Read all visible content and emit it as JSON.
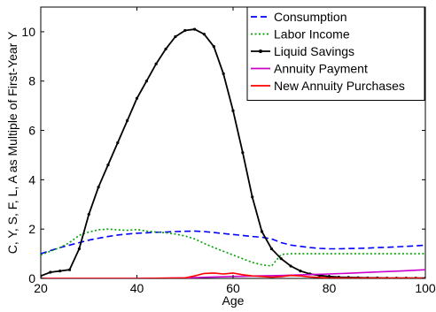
{
  "chart_data": {
    "type": "line",
    "xlabel": "Age",
    "ylabel": "C, Y, S, F, L, A as Multiple of First-Year Y",
    "xlim": [
      20,
      100
    ],
    "ylim": [
      0,
      11
    ],
    "x_ticks": [
      20,
      40,
      60,
      80,
      100
    ],
    "y_ticks": [
      0,
      2,
      4,
      6,
      8,
      10
    ],
    "grid": false,
    "legend_position": "top-right",
    "series": [
      {
        "name": "Consumption",
        "color": "#0000ff",
        "style": "dashed",
        "x": [
          20,
          22,
          24,
          26,
          28,
          30,
          32,
          34,
          36,
          38,
          40,
          42,
          44,
          46,
          48,
          50,
          52,
          54,
          56,
          58,
          60,
          62,
          64,
          66,
          68,
          70,
          72,
          74,
          76,
          78,
          80,
          82,
          84,
          86,
          88,
          90,
          92,
          94,
          96,
          98,
          100
        ],
        "y": [
          1.0,
          1.13,
          1.25,
          1.35,
          1.45,
          1.55,
          1.63,
          1.7,
          1.76,
          1.8,
          1.83,
          1.85,
          1.87,
          1.88,
          1.9,
          1.91,
          1.92,
          1.9,
          1.86,
          1.82,
          1.78,
          1.74,
          1.7,
          1.67,
          1.6,
          1.45,
          1.35,
          1.3,
          1.25,
          1.22,
          1.2,
          1.2,
          1.21,
          1.22,
          1.23,
          1.25,
          1.26,
          1.28,
          1.3,
          1.32,
          1.35
        ]
      },
      {
        "name": "Labor Income",
        "color": "#00a000",
        "style": "dotted",
        "x": [
          20,
          22,
          24,
          26,
          28,
          30,
          32,
          34,
          36,
          38,
          40,
          42,
          44,
          46,
          48,
          50,
          52,
          54,
          56,
          58,
          60,
          62,
          64,
          66,
          68,
          70,
          72,
          74,
          76,
          78,
          80,
          85,
          90,
          95,
          100
        ],
        "y": [
          0.95,
          1.1,
          1.25,
          1.45,
          1.75,
          1.88,
          1.97,
          2.0,
          1.97,
          1.95,
          1.98,
          1.92,
          1.88,
          1.85,
          1.8,
          1.72,
          1.6,
          1.42,
          1.25,
          1.1,
          0.95,
          0.8,
          0.65,
          0.55,
          0.5,
          0.97,
          1.0,
          1.0,
          1.0,
          1.0,
          1.0,
          1.0,
          1.0,
          1.0,
          1.0
        ]
      },
      {
        "name": "Liquid Savings",
        "color": "#000000",
        "style": "solid-dot",
        "x": [
          20,
          22,
          24,
          26,
          28,
          30,
          32,
          34,
          36,
          38,
          40,
          42,
          44,
          46,
          48,
          50,
          52,
          54,
          56,
          58,
          60,
          62,
          64,
          66,
          68,
          70,
          72,
          74,
          76,
          78,
          80,
          82,
          84,
          86,
          88,
          90,
          92,
          94,
          96,
          98,
          100
        ],
        "y": [
          0.1,
          0.25,
          0.3,
          0.35,
          1.2,
          2.6,
          3.7,
          4.6,
          5.5,
          6.4,
          7.3,
          8.0,
          8.7,
          9.3,
          9.8,
          10.05,
          10.1,
          9.9,
          9.4,
          8.3,
          6.8,
          5.1,
          3.3,
          1.9,
          1.2,
          0.8,
          0.5,
          0.3,
          0.18,
          0.12,
          0.08,
          0.05,
          0.04,
          0.03,
          0.02,
          0.02,
          0.01,
          0.01,
          0.01,
          0.01,
          0.01
        ]
      },
      {
        "name": "Annuity Payment",
        "color": "#cc00cc",
        "style": "solid",
        "x": [
          20,
          40,
          50,
          55,
          60,
          65,
          70,
          75,
          80,
          85,
          90,
          95,
          100
        ],
        "y": [
          0.0,
          0.0,
          0.02,
          0.05,
          0.08,
          0.1,
          0.12,
          0.15,
          0.18,
          0.22,
          0.26,
          0.3,
          0.35
        ]
      },
      {
        "name": "New Annuity Purchases",
        "color": "#ff0000",
        "style": "solid",
        "x": [
          20,
          40,
          50,
          52,
          54,
          56,
          58,
          60,
          62,
          64,
          66,
          68,
          70,
          72,
          74,
          76,
          78,
          80,
          85,
          90,
          95,
          100
        ],
        "y": [
          0.0,
          0.0,
          0.02,
          0.1,
          0.2,
          0.22,
          0.18,
          0.22,
          0.15,
          0.1,
          0.08,
          0.05,
          0.07,
          0.12,
          0.1,
          0.06,
          0.04,
          0.02,
          0.01,
          0.01,
          0.01,
          0.01
        ]
      }
    ]
  }
}
